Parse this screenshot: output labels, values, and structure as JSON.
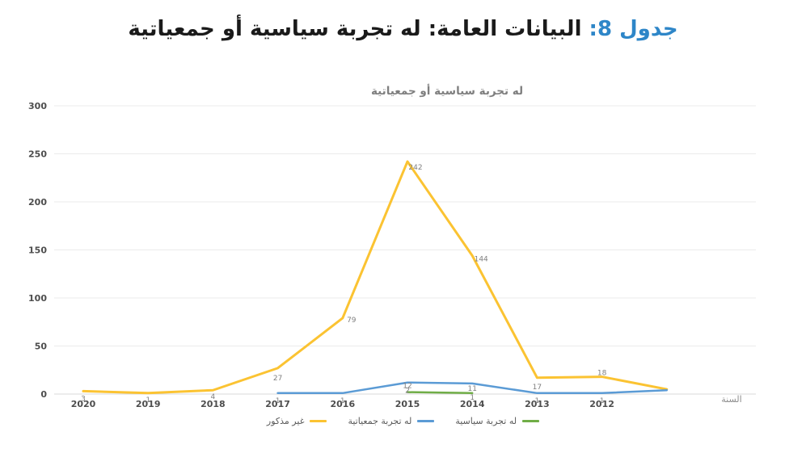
{
  "page_title": {
    "prefix": "جدول 8:",
    "rest": "البيانات العامة: له تجربة سياسية أو جمعياتية",
    "prefix_color": "#2e86c8"
  },
  "chart_data": {
    "type": "line",
    "title": "له تجربة سياسية أو جمعياتية",
    "xlabel": "السنة",
    "categories": [
      "2020",
      "2019",
      "2018",
      "2017",
      "2016",
      "2015",
      "2014",
      "2013",
      "2012",
      ""
    ],
    "ylim": [
      0,
      300
    ],
    "ytick_step": 50,
    "yticks": [
      "0",
      "50",
      "100",
      "150",
      "200",
      "250",
      "300"
    ],
    "grid": true,
    "legend_position": "bottom",
    "series": [
      {
        "name": "غير مذكور",
        "color": "#fbc332",
        "values": [
          3,
          1,
          4,
          27,
          79,
          242,
          144,
          17,
          18,
          5
        ],
        "labels": [
          "3",
          "1",
          "4",
          "27",
          "79",
          "242",
          "144",
          "17",
          "18",
          ""
        ],
        "label_offsets": [
          [
            0,
            9
          ],
          [
            0,
            8
          ],
          [
            0,
            8
          ],
          [
            0,
            12
          ],
          [
            11,
            2
          ],
          [
            10,
            7
          ],
          [
            11,
            4
          ],
          [
            0,
            11
          ],
          [
            0,
            -5
          ],
          [
            0,
            0
          ]
        ]
      },
      {
        "name": "له تجربة جمعياتية",
        "color": "#5b9bd5",
        "values": [
          null,
          null,
          null,
          1,
          1,
          12,
          11,
          1,
          1,
          4
        ],
        "labels": [
          "",
          "",
          "",
          "1",
          "1",
          "12",
          "11",
          "1",
          "1",
          ""
        ],
        "label_offsets": [
          [
            0,
            0
          ],
          [
            0,
            0
          ],
          [
            0,
            0
          ],
          [
            0,
            9
          ],
          [
            0,
            9
          ],
          [
            0,
            4
          ],
          [
            0,
            6
          ],
          [
            0,
            9
          ],
          [
            0,
            9
          ],
          [
            0,
            0
          ]
        ]
      },
      {
        "name": "له تجربة سياسية",
        "color": "#70ad47",
        "values": [
          null,
          null,
          null,
          null,
          null,
          2,
          1,
          null,
          null,
          null
        ],
        "labels": [
          "",
          "",
          "",
          "",
          "",
          "2",
          "1",
          "",
          "",
          ""
        ],
        "label_offsets": [
          [
            0,
            0
          ],
          [
            0,
            0
          ],
          [
            0,
            0
          ],
          [
            0,
            0
          ],
          [
            0,
            0
          ],
          [
            0,
            -2
          ],
          [
            0,
            5
          ],
          [
            0,
            0
          ],
          [
            0,
            0
          ],
          [
            0,
            0
          ]
        ]
      }
    ],
    "style": {
      "grid_color": "#ebebeb",
      "axis_color": "#d9d9d9",
      "tick_label_color": "#4d4d4d",
      "title_color": "#7f7f7f",
      "data_label_color": "#7f7f7f",
      "axis_title_color": "#8c8c8c"
    }
  }
}
